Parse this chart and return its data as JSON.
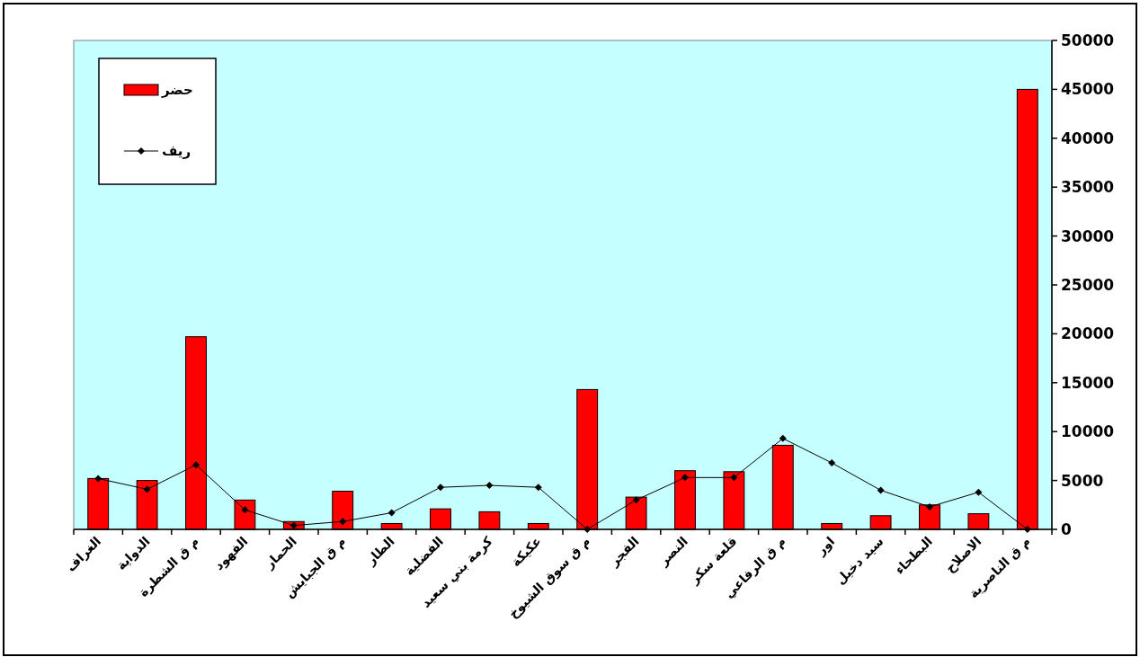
{
  "chart_data": {
    "type": "bar",
    "categories": [
      "الغراف",
      "الدواية",
      "م ق الشطرة",
      "الفهود",
      "الحمار",
      "م ق الجبايش",
      "الطار",
      "الفضلية",
      "كرمة بني سعيد",
      "عكيكة",
      "م ق سوق الشيوخ",
      "الفجر",
      "النصر",
      "قلعة سكر",
      "م ق الرفاعي",
      "اور",
      "سيد دخيل",
      "البطحاء",
      "الاصلاح",
      "م ق الناصرية"
    ],
    "series": [
      {
        "name": "حضر",
        "color": "#ff0000",
        "values": [
          5200,
          5000,
          19700,
          3000,
          800,
          3900,
          600,
          2100,
          1800,
          600,
          14300,
          3300,
          6000,
          5900,
          8600,
          600,
          1400,
          2500,
          1600,
          45000
        ]
      },
      {
        "name": "ريف",
        "type": "line",
        "color": "#000000",
        "marker": "diamond",
        "values": [
          5200,
          4100,
          6600,
          2000,
          400,
          800,
          1700,
          4300,
          4500,
          4300,
          0,
          3000,
          5300,
          5300,
          9300,
          6800,
          4000,
          2300,
          3800,
          0
        ]
      }
    ],
    "ylim": [
      0,
      50000
    ],
    "yticks": [
      0,
      5000,
      10000,
      15000,
      20000,
      25000,
      30000,
      35000,
      40000,
      45000,
      50000
    ],
    "legend": "top left"
  }
}
